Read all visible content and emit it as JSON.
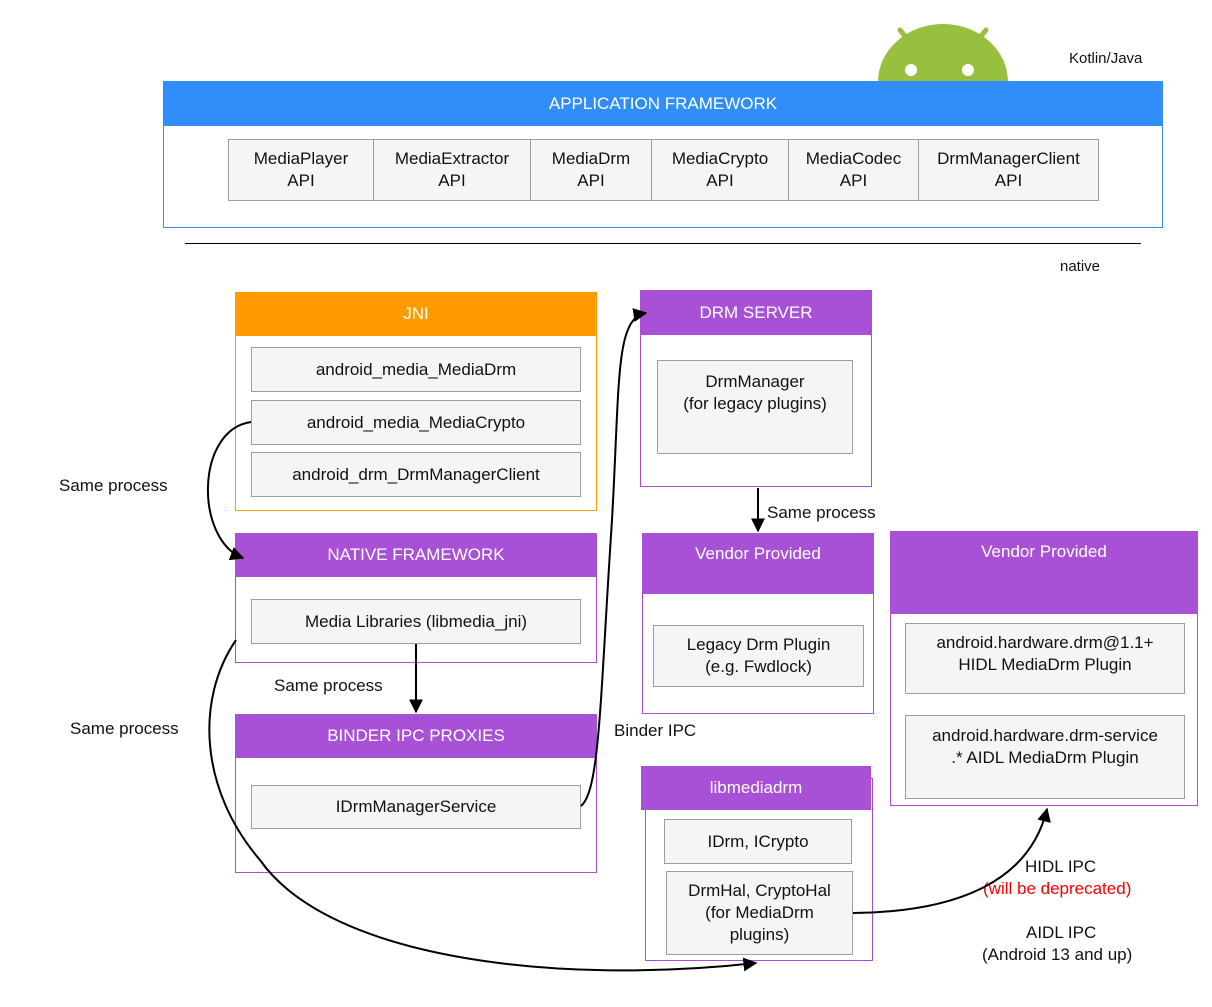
{
  "top": {
    "language_label": "Kotlin/Java",
    "native_label": "native",
    "logo": "android-robot-icon"
  },
  "app_framework": {
    "title": "APPLICATION FRAMEWORK",
    "apis": [
      "MediaPlayer\nAPI",
      "MediaExtractor\nAPI",
      "MediaDrm\nAPI",
      "MediaCrypto\nAPI",
      "MediaCodec\nAPI",
      "DrmManagerClient\nAPI"
    ]
  },
  "jni": {
    "title": "JNI",
    "items": [
      "android_media_MediaDrm",
      "android_media_MediaCrypto",
      "android_drm_DrmManagerClient"
    ]
  },
  "native_framework": {
    "title": "NATIVE FRAMEWORK",
    "items": [
      "Media Libraries (libmedia_jni)"
    ]
  },
  "binder_proxies": {
    "title": "BINDER IPC PROXIES",
    "items": [
      "IDrmManagerService"
    ]
  },
  "drm_server": {
    "title": "DRM SERVER",
    "items": [
      "DrmManager\n(for legacy plugins)"
    ]
  },
  "vendor_legacy": {
    "title": "Vendor Provided",
    "items": [
      "Legacy Drm Plugin\n(e.g. Fwdlock)"
    ]
  },
  "vendor_hal": {
    "title": "Vendor Provided",
    "items": [
      "android.hardware.drm@1.1+\nHIDL MediaDrm Plugin",
      "android.hardware.drm-service\n.* AIDL MediaDrm Plugin"
    ]
  },
  "libmediadrm": {
    "title": "libmediadrm",
    "items": [
      "IDrm, ICrypto",
      "DrmHal, CryptoHal\n(for MediaDrm\nplugins)"
    ]
  },
  "labels": {
    "same_process_jni": "Same process",
    "same_process_native": "Same process",
    "same_process_long": "Same process",
    "same_process_drm": "Same process",
    "binder_ipc": "Binder IPC",
    "hidl_ipc": "HIDL IPC",
    "hidl_deprecated": "(will be deprecated)",
    "aidl_ipc": "AIDL IPC",
    "aidl_version": "(Android 13 and up)"
  },
  "colors": {
    "blue": "#318ef8",
    "orange": "#ff9b00",
    "purple": "#a951d6",
    "deprecated": "#ff0000"
  }
}
